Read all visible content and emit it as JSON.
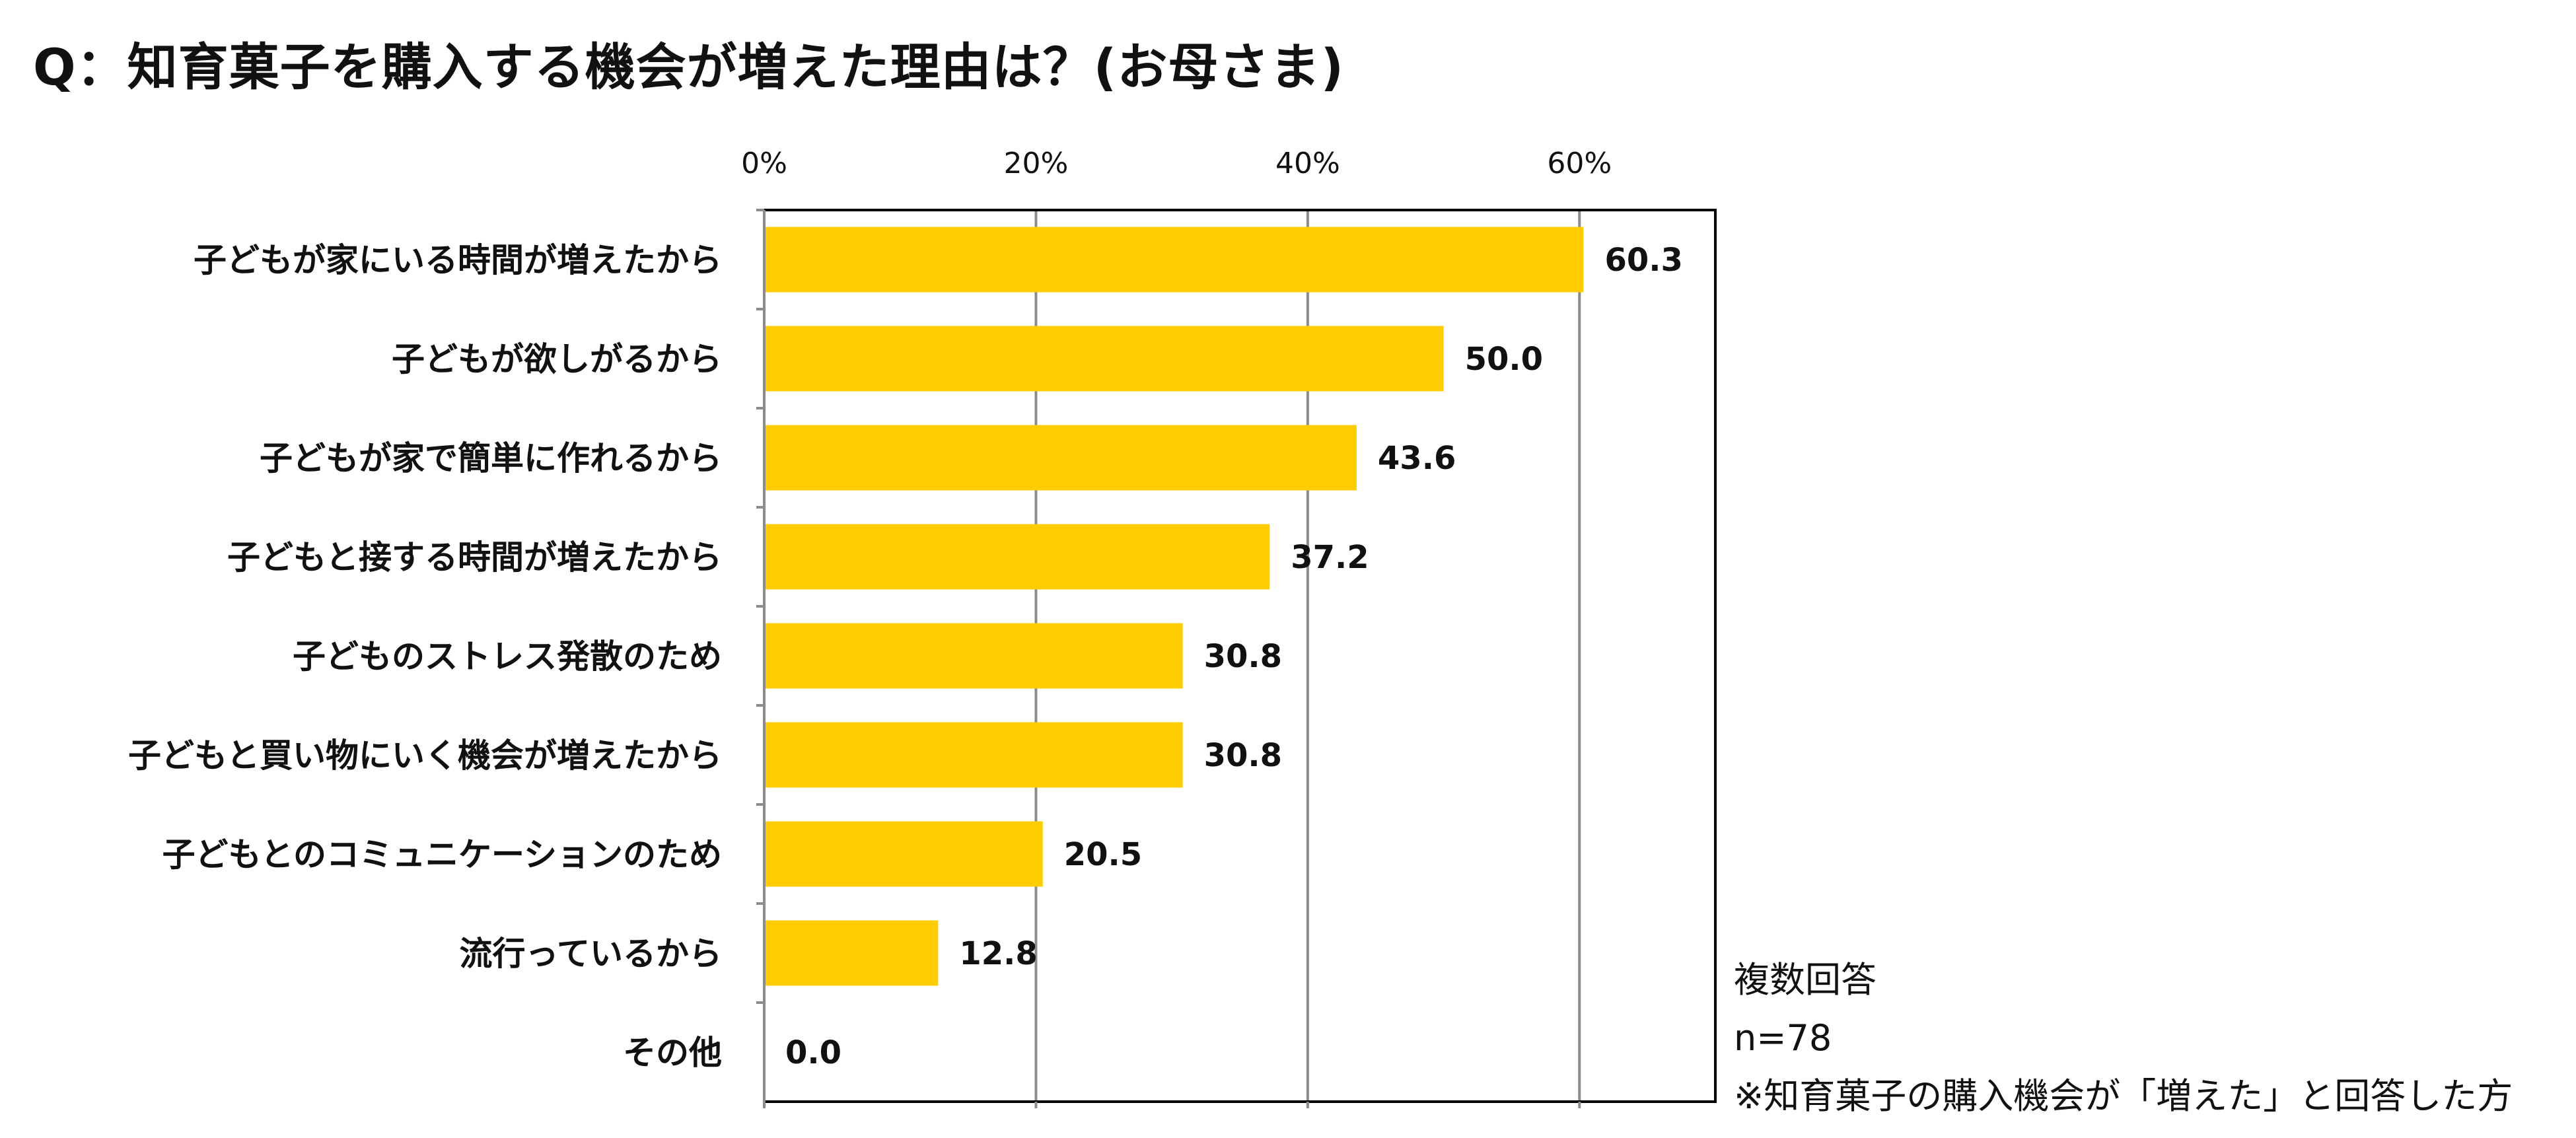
{
  "title": "Q：知育菓子を購入する機会が増えた理由は？(お母さま)",
  "colors": {
    "bar": "#FFCC00",
    "grid": "#8C8C8C",
    "frame": "#000000",
    "text": "#111111"
  },
  "notes": {
    "multiple_answers": "複数回答",
    "sample_size": "n=78",
    "respondents": "※知育菓子の購入機会が「増えた」と回答した方"
  },
  "chart_data": {
    "type": "bar",
    "orientation": "horizontal",
    "title": "Q：知育菓子を購入する機会が増えた理由は？(お母さま)",
    "xlabel": "",
    "ylabel": "",
    "xlim": [
      0,
      70
    ],
    "ticks": [
      0,
      20,
      40,
      60
    ],
    "tick_labels": [
      "0%",
      "20%",
      "40%",
      "60%"
    ],
    "grid": true,
    "categories": [
      "子どもが家にいる時間が増えたから",
      "子どもが欲しがるから",
      "子どもが家で簡単に作れるから",
      "子どもと接する時間が増えたから",
      "子どものストレス発散のため",
      "子どもと買い物にいく機会が増えたから",
      "子どもとのコミュニケーションのため",
      "流行っているから",
      "その他"
    ],
    "values": [
      60.3,
      50.0,
      43.6,
      37.2,
      30.8,
      30.8,
      20.5,
      12.8,
      0.0
    ],
    "value_labels": [
      "60.3",
      "50.0",
      "43.6",
      "37.2",
      "30.8",
      "30.8",
      "20.5",
      "12.8",
      "0.0"
    ]
  }
}
